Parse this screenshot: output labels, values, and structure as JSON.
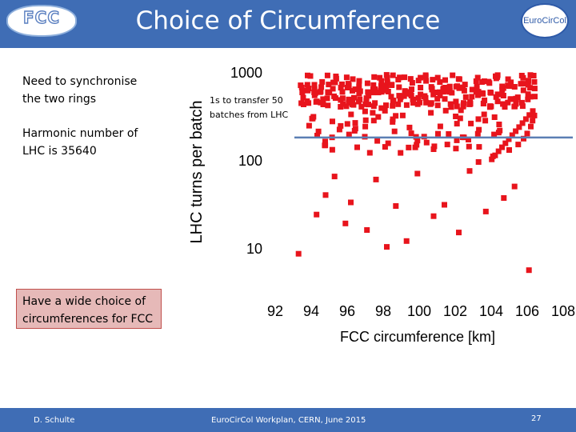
{
  "header": {
    "title": "Choice of Circumference",
    "logo_left_text": "FCC",
    "logo_left_subtext": "",
    "logo_right_text": "EuroCirCol"
  },
  "body_text": {
    "line1": "Need to synchronise the two rings",
    "line2": "Harmonic number of LHC is 35640",
    "box_text": "Have a wide choice of circumferences for FCC"
  },
  "annotation": {
    "text": "1s to transfer 50 batches from LHC"
  },
  "footer": {
    "author": "D. Schulte",
    "event": "EuroCirCol Workplan, CERN, June 2015",
    "page": "27"
  },
  "colors": {
    "header_bg": "#3f6db5",
    "marker": "#e8141c",
    "reference_line": "#5b7fb4",
    "box_fill": "#e6b9b8"
  },
  "chart_data": {
    "type": "scatter",
    "title": "",
    "xlabel": "FCC circumference [km]",
    "ylabel": "LHC turns per batch",
    "xlim": [
      92,
      108
    ],
    "ylim": [
      5,
      1000
    ],
    "y_scale": "log",
    "x_ticks": [
      "92",
      "94",
      "96",
      "98",
      "100",
      "102",
      "104",
      "106",
      "108"
    ],
    "y_ticks": [
      "10",
      "100",
      "1000"
    ],
    "grid": false,
    "reference_line_y": 180,
    "series": [
      {
        "marker": "square",
        "color": "#e8141c",
        "x": [
          93.3,
          106.1,
          102.2,
          99.3,
          98.2,
          95.9,
          97.1,
          100.8,
          94.3,
          103.7,
          94.8,
          96.2,
          98.7,
          101.4,
          104.7,
          105.3,
          97.6,
          95.3,
          99.9,
          102.8,
          103.3,
          104.1,
          105.0,
          105.5,
          105.8,
          106.0,
          106.2,
          106.3,
          106.4,
          106.5
        ],
        "y": [
          8.6,
          5.6,
          15,
          12,
          10.3,
          19,
          16,
          23,
          24,
          26,
          40,
          33,
          30,
          31,
          37,
          50,
          60,
          65,
          70,
          75,
          95,
          110,
          130,
          150,
          175,
          200,
          240,
          280,
          320,
          370
        ],
        "dense_bands": [
          {
            "x_from": 93.5,
            "x_to": 106.6,
            "y_from": 400,
            "y_to": 950,
            "note": "dense block of markers near top"
          },
          {
            "x_from": 94.0,
            "x_to": 104.8,
            "y_from": 120,
            "y_to": 400,
            "note": "dense diagonal bands"
          }
        ]
      }
    ]
  }
}
